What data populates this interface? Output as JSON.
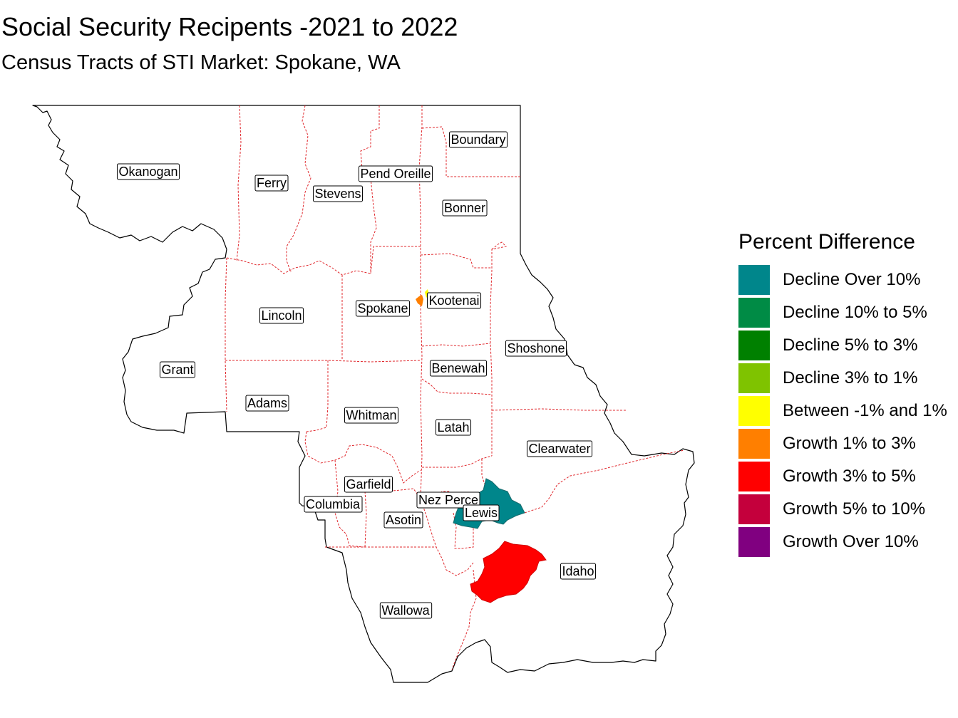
{
  "title": "Social Security Recipents -2021 to 2022",
  "subtitle": "Census Tracts of STI Market: Spokane, WA",
  "legend": {
    "title": "Percent Difference",
    "items": [
      {
        "label": "Decline Over 10%",
        "color": "#00868B"
      },
      {
        "label": "Decline 10% to 5%",
        "color": "#008B45"
      },
      {
        "label": "Decline 5% to 3%",
        "color": "#008000"
      },
      {
        "label": "Decline 3% to 1%",
        "color": "#7FC300"
      },
      {
        "label": "Between -1% and 1%",
        "color": "#FFFF00"
      },
      {
        "label": "Growth 1% to 3%",
        "color": "#FF7F00"
      },
      {
        "label": "Growth 3% to 5%",
        "color": "#FF0000"
      },
      {
        "label": "Growth 5% to 10%",
        "color": "#C4003C"
      },
      {
        "label": "Growth Over 10%",
        "color": "#800080"
      }
    ]
  },
  "counties": [
    {
      "name": "Okanogan"
    },
    {
      "name": "Ferry"
    },
    {
      "name": "Stevens"
    },
    {
      "name": "Pend Oreille"
    },
    {
      "name": "Boundary"
    },
    {
      "name": "Bonner"
    },
    {
      "name": "Lincoln"
    },
    {
      "name": "Spokane"
    },
    {
      "name": "Kootenai"
    },
    {
      "name": "Shoshone"
    },
    {
      "name": "Grant"
    },
    {
      "name": "Benewah"
    },
    {
      "name": "Adams"
    },
    {
      "name": "Whitman"
    },
    {
      "name": "Latah"
    },
    {
      "name": "Clearwater"
    },
    {
      "name": "Garfield"
    },
    {
      "name": "Columbia"
    },
    {
      "name": "Nez Perce"
    },
    {
      "name": "Lewis"
    },
    {
      "name": "Asotin"
    },
    {
      "name": "Idaho"
    },
    {
      "name": "Wallowa"
    }
  ],
  "highlighted_tracts": [
    {
      "county": "Lewis",
      "category": "Decline Over 10%",
      "color": "#00868B"
    },
    {
      "county": "Idaho",
      "category": "Growth 3% to 5%",
      "color": "#FF0000"
    },
    {
      "county": "Spokane",
      "category": "Growth 1% to 3%",
      "color": "#FF7F00"
    },
    {
      "county": "Kootenai",
      "category": "Between -1% and 1%",
      "color": "#FFFF00"
    }
  ],
  "colors": {
    "boundary_outline": "#000000",
    "county_border": "#E0282D"
  }
}
